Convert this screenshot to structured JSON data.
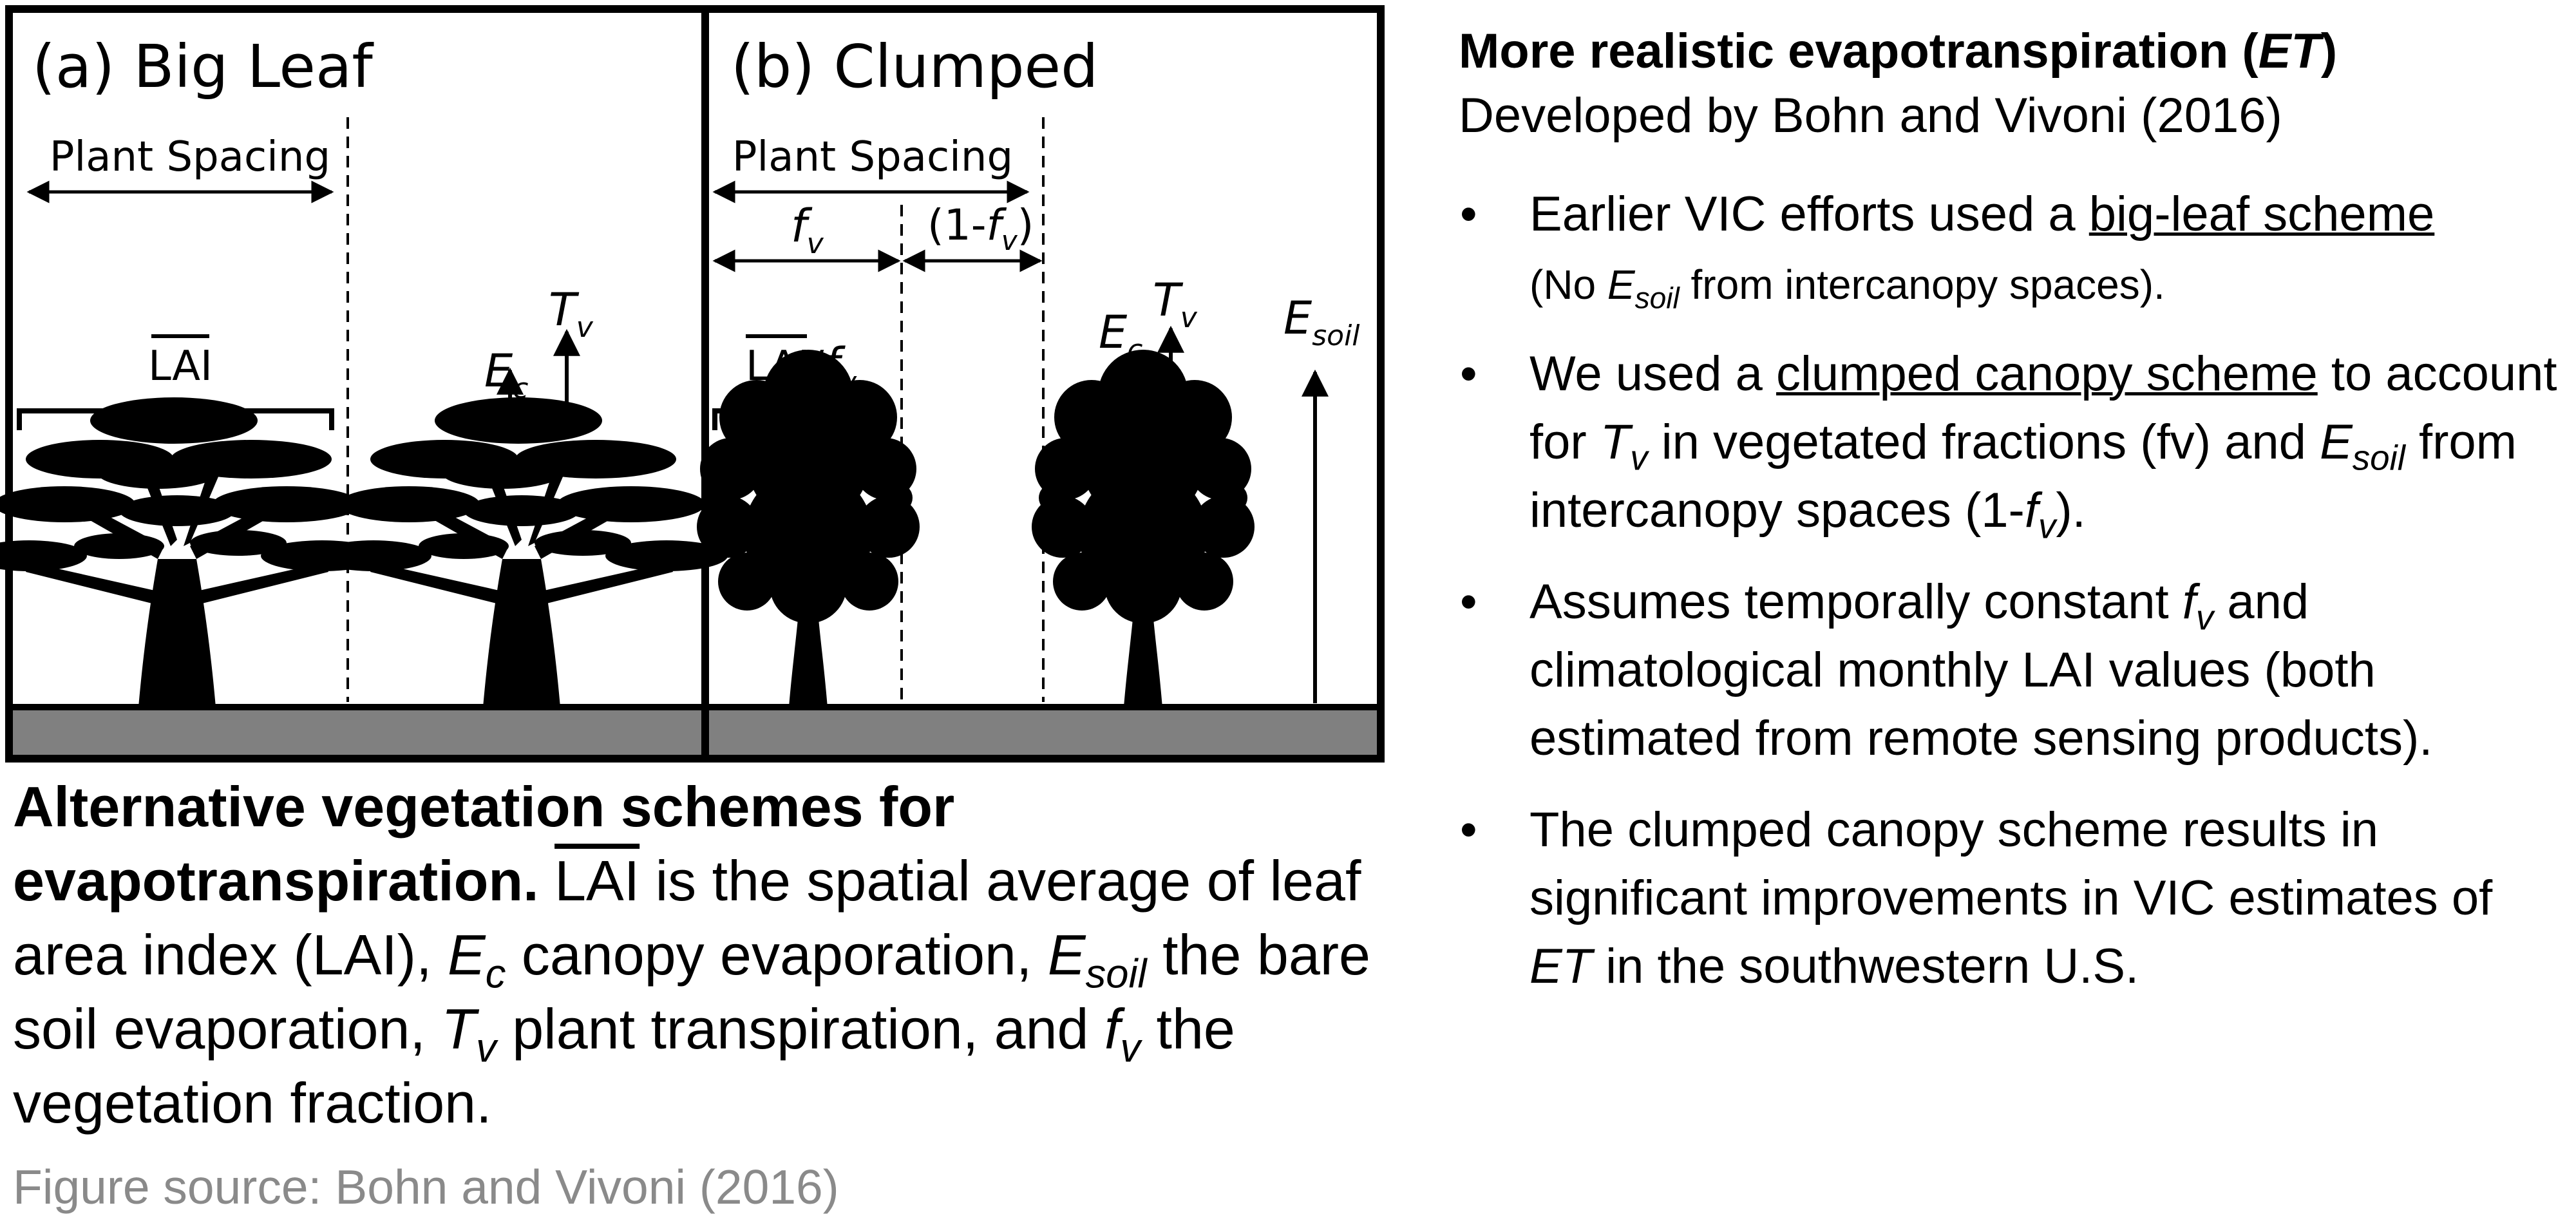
{
  "figure": {
    "panel_a": {
      "title": "(a) Big Leaf",
      "plant_spacing": "Plant Spacing",
      "lai": "LAI",
      "ec_main": "E",
      "ec_sub": "c",
      "tv_main": "T",
      "tv_sub": "v"
    },
    "panel_b": {
      "title": "(b) Clumped",
      "plant_spacing": "Plant Spacing",
      "fv_main": "f",
      "fv_sub": "v",
      "one_minus_open": "(1-",
      "one_minus_close": ")",
      "lai": "LAI",
      "lai_slash": "/",
      "ec_main": "E",
      "ec_sub": "c",
      "tv_main": "T",
      "tv_sub": "v",
      "esoil_main": "E",
      "esoil_sub": "soil"
    },
    "colors": {
      "ground": "#808080",
      "frame": "#000000",
      "tree": "#000000"
    }
  },
  "caption": {
    "bold": "Alternative vegetation schemes for evapotranspiration.",
    "lai": "LAI",
    "t1": " is the spatial average of leaf area index (LAI), ",
    "ec": "E",
    "ec_sub": "c",
    "t2": " canopy evaporation, ",
    "esoil": "E",
    "esoil_sub": "soil",
    "t3": " the bare soil evaporation, ",
    "tv": "T",
    "tv_sub": "v",
    "t4": " plant transpiration, and ",
    "fv": "f",
    "fv_sub": "v",
    "t5": " the vegetation fraction."
  },
  "source": "Figure source: Bohn and Vivoni (2016)",
  "panel": {
    "title_pre": "More realistic evapotranspiration (",
    "title_et": "ET",
    "title_post": ")",
    "subtitle": "Developed by Bohn and Vivoni (2016)",
    "b1": {
      "a": "Earlier VIC efforts used a ",
      "u": "big-leaf scheme",
      "s1": "(No ",
      "e": "E",
      "e_sub": "soil",
      "s2": " from intercanopy spaces)."
    },
    "b2": {
      "a": "We used a ",
      "u": "clumped canopy scheme",
      "b": " to account for ",
      "t": "T",
      "t_sub": "v",
      "c": " in vegetated fractions (fv) and ",
      "e": "E",
      "e_sub": "soil",
      "d": " from intercanopy spaces (1-",
      "f": "f",
      "f_sub": "v",
      "g": ")."
    },
    "b3": {
      "a": "Assumes temporally constant ",
      "f": "f",
      "f_sub": "v",
      "b": " and climatological monthly LAI values (both estimated from remote sensing products)."
    },
    "b4": {
      "a": "The clumped canopy scheme results in significant improvements in VIC estimates of ",
      "et": "ET",
      "b": " in the southwestern U.S."
    }
  }
}
